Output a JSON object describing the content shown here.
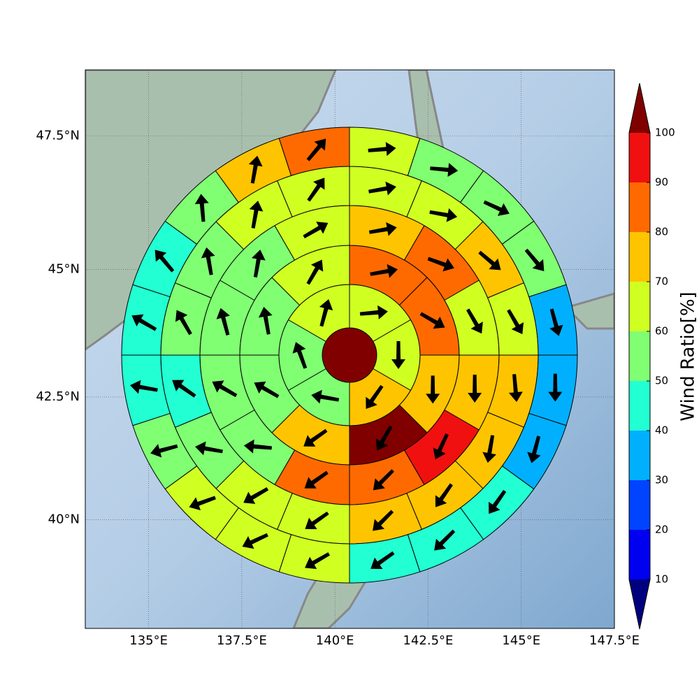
{
  "chart_data": {
    "type": "polar_grid",
    "colorbar_label": "Wind Ratio[%]",
    "xlim": [
      133.3,
      147.5
    ],
    "ylim": [
      37.7,
      48.7
    ],
    "xticks": [
      {
        "value": 135,
        "label": "135°E"
      },
      {
        "value": 137.5,
        "label": "137.5°E"
      },
      {
        "value": 140,
        "label": "140°E"
      },
      {
        "value": 142.5,
        "label": "142.5°E"
      },
      {
        "value": 145,
        "label": "145°E"
      },
      {
        "value": 147.5,
        "label": "147.5°E"
      }
    ],
    "yticks": [
      {
        "value": 40,
        "label": "40°N"
      },
      {
        "value": 42.5,
        "label": "42.5°N"
      },
      {
        "value": 45,
        "label": "45°N"
      },
      {
        "value": 47.5,
        "label": "47.5°N"
      }
    ],
    "grid": true,
    "colorbar": {
      "levels": [
        10,
        20,
        30,
        40,
        50,
        60,
        70,
        80,
        90,
        100
      ],
      "colors": [
        "#00007f",
        "#0000f0",
        "#0044ff",
        "#00b0ff",
        "#22ffd2",
        "#80ff72",
        "#d0ff22",
        "#ffc400",
        "#ff6a00",
        "#f01010",
        "#800000"
      ],
      "extend": "both"
    },
    "center_value": 105,
    "rings": [
      {
        "values": [
          65,
          65,
          75,
          55,
          55,
          65
        ],
        "directions": [
          85,
          180,
          215,
          280,
          340,
          15
        ]
      },
      {
        "values": [
          85,
          85,
          75,
          105,
          75,
          55,
          55,
          65
        ],
        "directions": [
          80,
          120,
          180,
          210,
          235,
          300,
          350,
          30
        ]
      },
      {
        "values": [
          75,
          85,
          65,
          75,
          95,
          85,
          85,
          55,
          55,
          55,
          55,
          65
        ],
        "directions": [
          80,
          110,
          150,
          180,
          205,
          225,
          235,
          275,
          300,
          345,
          10,
          60
        ]
      },
      {
        "values": [
          65,
          65,
          75,
          65,
          75,
          75,
          75,
          75,
          65,
          65,
          55,
          45,
          55,
          55,
          65,
          65
        ],
        "directions": [
          80,
          100,
          130,
          150,
          175,
          190,
          215,
          225,
          235,
          240,
          280,
          305,
          330,
          350,
          10,
          35
        ]
      },
      {
        "values": [
          65,
          55,
          55,
          55,
          35,
          35,
          35,
          45,
          45,
          45,
          65,
          65,
          65,
          55,
          45,
          45,
          45,
          55,
          75,
          85
        ],
        "directions": [
          85,
          95,
          115,
          140,
          165,
          180,
          195,
          215,
          225,
          235,
          240,
          245,
          250,
          255,
          280,
          300,
          320,
          355,
          10,
          40
        ]
      }
    ]
  }
}
